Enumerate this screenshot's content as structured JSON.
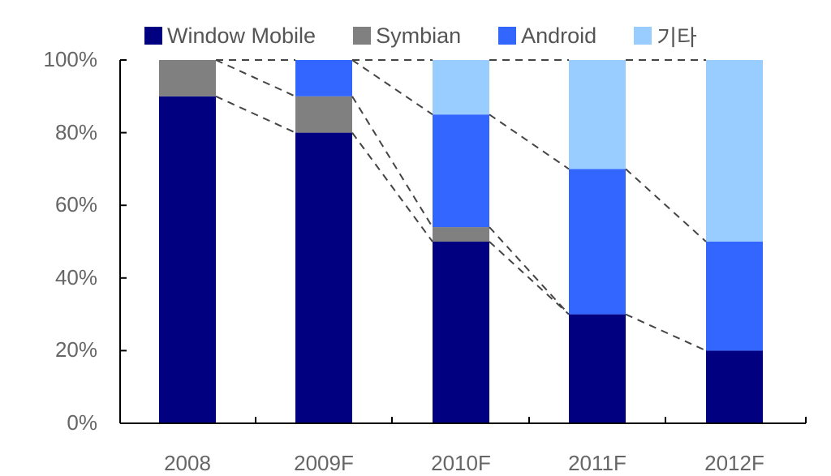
{
  "chart_data": {
    "type": "bar",
    "stacked": true,
    "normalized": true,
    "title": "",
    "xlabel": "",
    "ylabel": "",
    "ylim": [
      0,
      100
    ],
    "yticks": [
      "0%",
      "20%",
      "40%",
      "60%",
      "80%",
      "100%"
    ],
    "categories": [
      "2008",
      "2009F",
      "2010F",
      "2011F",
      "2012F"
    ],
    "series": [
      {
        "name": "Window Mobile",
        "color": "#000080",
        "values": [
          90,
          80,
          50,
          30,
          20
        ]
      },
      {
        "name": "Symbian",
        "color": "#808080",
        "values": [
          10,
          10,
          4,
          0,
          0
        ]
      },
      {
        "name": "Android",
        "color": "#3366FF",
        "values": [
          0,
          10,
          31,
          40,
          30
        ]
      },
      {
        "name": "기타",
        "color": "#99CCFF",
        "values": [
          0,
          0,
          15,
          30,
          50
        ]
      }
    ],
    "series_lines": true,
    "legend_position": "top",
    "grid": false
  },
  "legend": {
    "items": [
      {
        "label": "Window Mobile",
        "color": "#000080"
      },
      {
        "label": "Symbian",
        "color": "#808080"
      },
      {
        "label": "Android",
        "color": "#3366FF"
      },
      {
        "label": "기타",
        "color": "#99CCFF"
      }
    ]
  }
}
